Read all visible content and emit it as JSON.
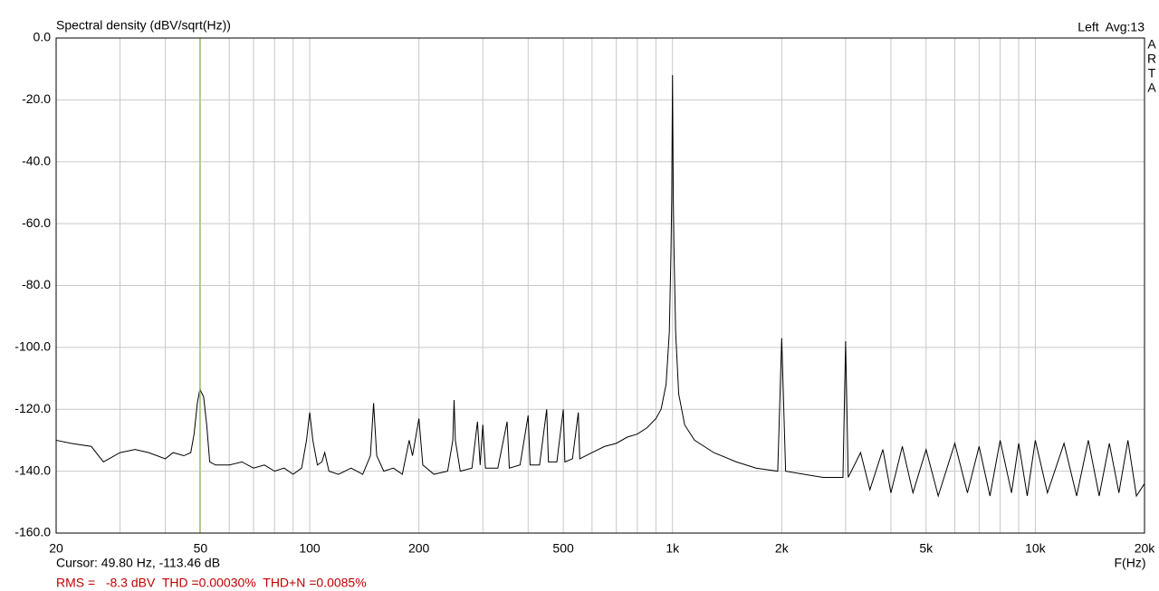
{
  "chart_data": {
    "type": "line",
    "title": "Spectral density (dBV/sqrt(Hz))",
    "channel_info": "Left  Avg:13",
    "brand": [
      "A",
      "R",
      "T",
      "A"
    ],
    "x_label": "F(Hz)",
    "x_log": true,
    "xlim": [
      20,
      20000
    ],
    "xticks": [
      20,
      50,
      100,
      200,
      500,
      {
        "value": 1000,
        "label": "1k"
      },
      {
        "value": 2000,
        "label": "2k"
      },
      {
        "value": 5000,
        "label": "5k"
      },
      {
        "value": 10000,
        "label": "10k"
      },
      {
        "value": 20000,
        "label": "20k"
      }
    ],
    "x_minor_grid": [
      30,
      40,
      60,
      70,
      80,
      90,
      300,
      400,
      600,
      700,
      800,
      900,
      3000,
      4000,
      6000,
      7000,
      8000,
      9000
    ],
    "ylim": [
      -160,
      0
    ],
    "yticks": [
      {
        "value": 0,
        "label": "0.0"
      },
      {
        "value": -20,
        "label": "-20.0"
      },
      {
        "value": -40,
        "label": "-40.0"
      },
      {
        "value": -60,
        "label": "-60.0"
      },
      {
        "value": -80,
        "label": "-80.0"
      },
      {
        "value": -100,
        "label": "-100.0"
      },
      {
        "value": -120,
        "label": "-120.0"
      },
      {
        "value": -140,
        "label": "-140.0"
      },
      {
        "value": -160,
        "label": "-160.0"
      }
    ],
    "grid": true,
    "color": "#000000",
    "x": [
      20,
      22,
      25,
      27,
      30,
      33,
      36,
      40,
      42,
      45,
      47,
      48,
      49,
      49.8,
      51,
      52,
      53,
      55,
      60,
      65,
      70,
      75,
      80,
      85,
      90,
      95,
      98,
      100,
      102,
      105,
      108,
      110,
      113,
      120,
      130,
      140,
      147,
      150,
      153,
      160,
      170,
      180,
      188,
      192,
      200,
      205,
      220,
      240,
      248,
      250,
      252,
      260,
      280,
      290,
      295,
      300,
      305,
      330,
      350,
      355,
      380,
      400,
      405,
      430,
      450,
      455,
      480,
      500,
      505,
      530,
      550,
      555,
      600,
      650,
      700,
      750,
      800,
      850,
      900,
      930,
      960,
      980,
      990,
      995,
      1000,
      1005,
      1010,
      1020,
      1040,
      1080,
      1150,
      1300,
      1500,
      1700,
      1950,
      2000,
      2050,
      2300,
      2600,
      2950,
      3000,
      3050,
      3300,
      3500,
      3800,
      4000,
      4300,
      4600,
      5000,
      5400,
      6000,
      6500,
      7000,
      7500,
      8000,
      8600,
      9000,
      9500,
      10000,
      10800,
      12000,
      13000,
      14000,
      15000,
      16000,
      17000,
      18000,
      19000,
      20000
    ],
    "values": [
      -130,
      -131,
      -132,
      -137,
      -134,
      -133,
      -134,
      -136,
      -134,
      -135,
      -134,
      -128,
      -118,
      -113.5,
      -116,
      -125,
      -137,
      -138,
      -138,
      -137,
      -139,
      -138,
      -140,
      -139,
      -141,
      -139,
      -130,
      -121,
      -130,
      -138,
      -137,
      -134,
      -140,
      -141,
      -139,
      -141,
      -135,
      -118,
      -135,
      -140,
      -139,
      -141,
      -130,
      -135,
      -123,
      -138,
      -141,
      -140,
      -130,
      -117,
      -130,
      -140,
      -139,
      -124,
      -138,
      -125,
      -139,
      -139,
      -124,
      -139,
      -138,
      -122,
      -138,
      -138,
      -120,
      -137,
      -137,
      -120,
      -137,
      -136,
      -121,
      -136,
      -134,
      -132,
      -131,
      -129,
      -128,
      -126,
      -123,
      -120,
      -112,
      -95,
      -70,
      -52,
      -12,
      -52,
      -70,
      -95,
      -115,
      -125,
      -130,
      -134,
      -137,
      -139,
      -140,
      -97,
      -140,
      -141,
      -142,
      -142,
      -98,
      -142,
      -134,
      -146,
      -133,
      -147,
      -132,
      -147,
      -133,
      -148,
      -131,
      -147,
      -132,
      -148,
      -130,
      -147,
      -131,
      -148,
      -130,
      -147,
      -131,
      -148,
      -130,
      -148,
      -131,
      -147,
      -130,
      -148,
      -144
    ],
    "cursor": {
      "x": 49.8,
      "y": -113.46,
      "color": "#9acd32",
      "label": "Cursor: 49.80 Hz, -113.46 dB"
    },
    "measurements": {
      "text": "RMS =   -8.3 dBV  THD =0.00030%  THD+N =0.0085%",
      "color": "#c00000"
    }
  }
}
